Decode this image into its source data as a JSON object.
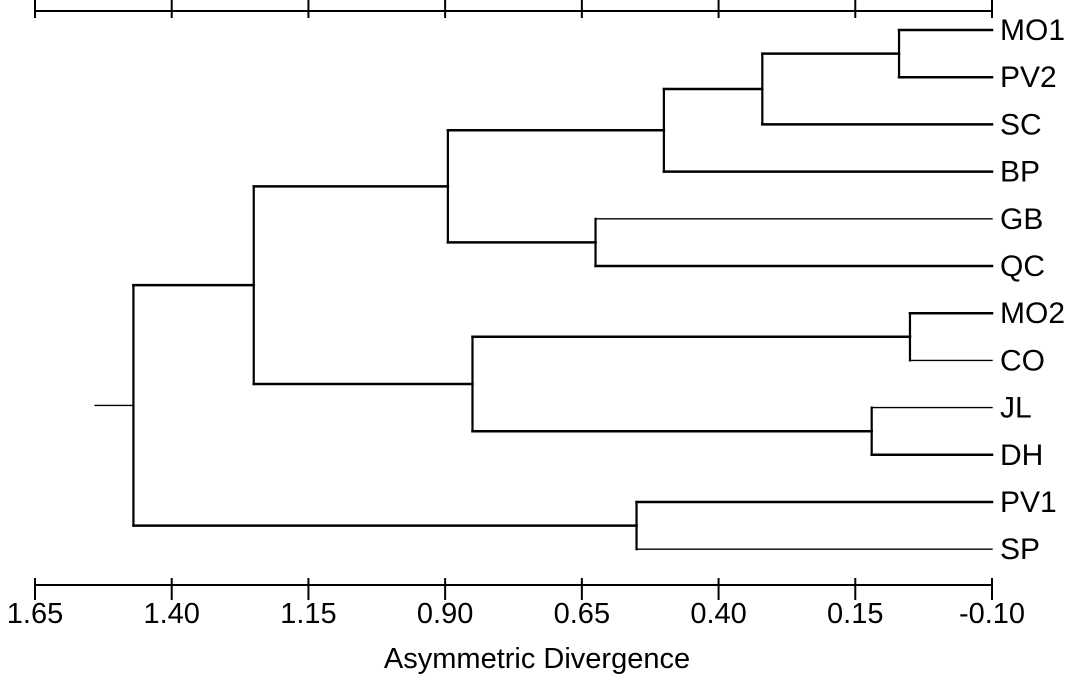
{
  "figure": {
    "type": "dendrogram",
    "axis_title": "Asymmetric Divergence",
    "axis_min": 1.65,
    "axis_max": -0.1,
    "ticks": [
      "1.65",
      "1.40",
      "1.15",
      "0.90",
      "0.65",
      "0.40",
      "0.15",
      "-0.10"
    ],
    "tick_values": [
      1.65,
      1.4,
      1.15,
      0.9,
      0.65,
      0.4,
      0.15,
      -0.1
    ],
    "minor_ticks_between": 1,
    "leaves": [
      "MO1",
      "PV2",
      "SC",
      "BP",
      "GB",
      "QC",
      "MO2",
      "CO",
      "JL",
      "DH",
      "PV1",
      "SP"
    ],
    "merges": [
      {
        "id": "n1",
        "children": [
          "MO1",
          "PV2"
        ],
        "height": 0.07
      },
      {
        "id": "n2",
        "children": [
          "n1",
          "SC"
        ],
        "height": 0.32
      },
      {
        "id": "n3",
        "children": [
          "n2",
          "BP"
        ],
        "height": 0.5
      },
      {
        "id": "n4",
        "children": [
          "GB",
          "QC"
        ],
        "height": 0.625
      },
      {
        "id": "n5",
        "children": [
          "n3",
          "n4"
        ],
        "height": 0.895
      },
      {
        "id": "n6",
        "children": [
          "MO2",
          "CO"
        ],
        "height": 0.05
      },
      {
        "id": "n7",
        "children": [
          "JL",
          "DH"
        ],
        "height": 0.12
      },
      {
        "id": "n8",
        "children": [
          "n6",
          "n7"
        ],
        "height": 0.85
      },
      {
        "id": "n9",
        "children": [
          "n5",
          "n8"
        ],
        "height": 1.25
      },
      {
        "id": "n10",
        "children": [
          "PV1",
          "SP"
        ],
        "height": 0.55
      },
      {
        "id": "n11",
        "children": [
          "n9",
          "n10"
        ],
        "height": 1.47
      }
    ],
    "root_stub_height": 1.54
  }
}
